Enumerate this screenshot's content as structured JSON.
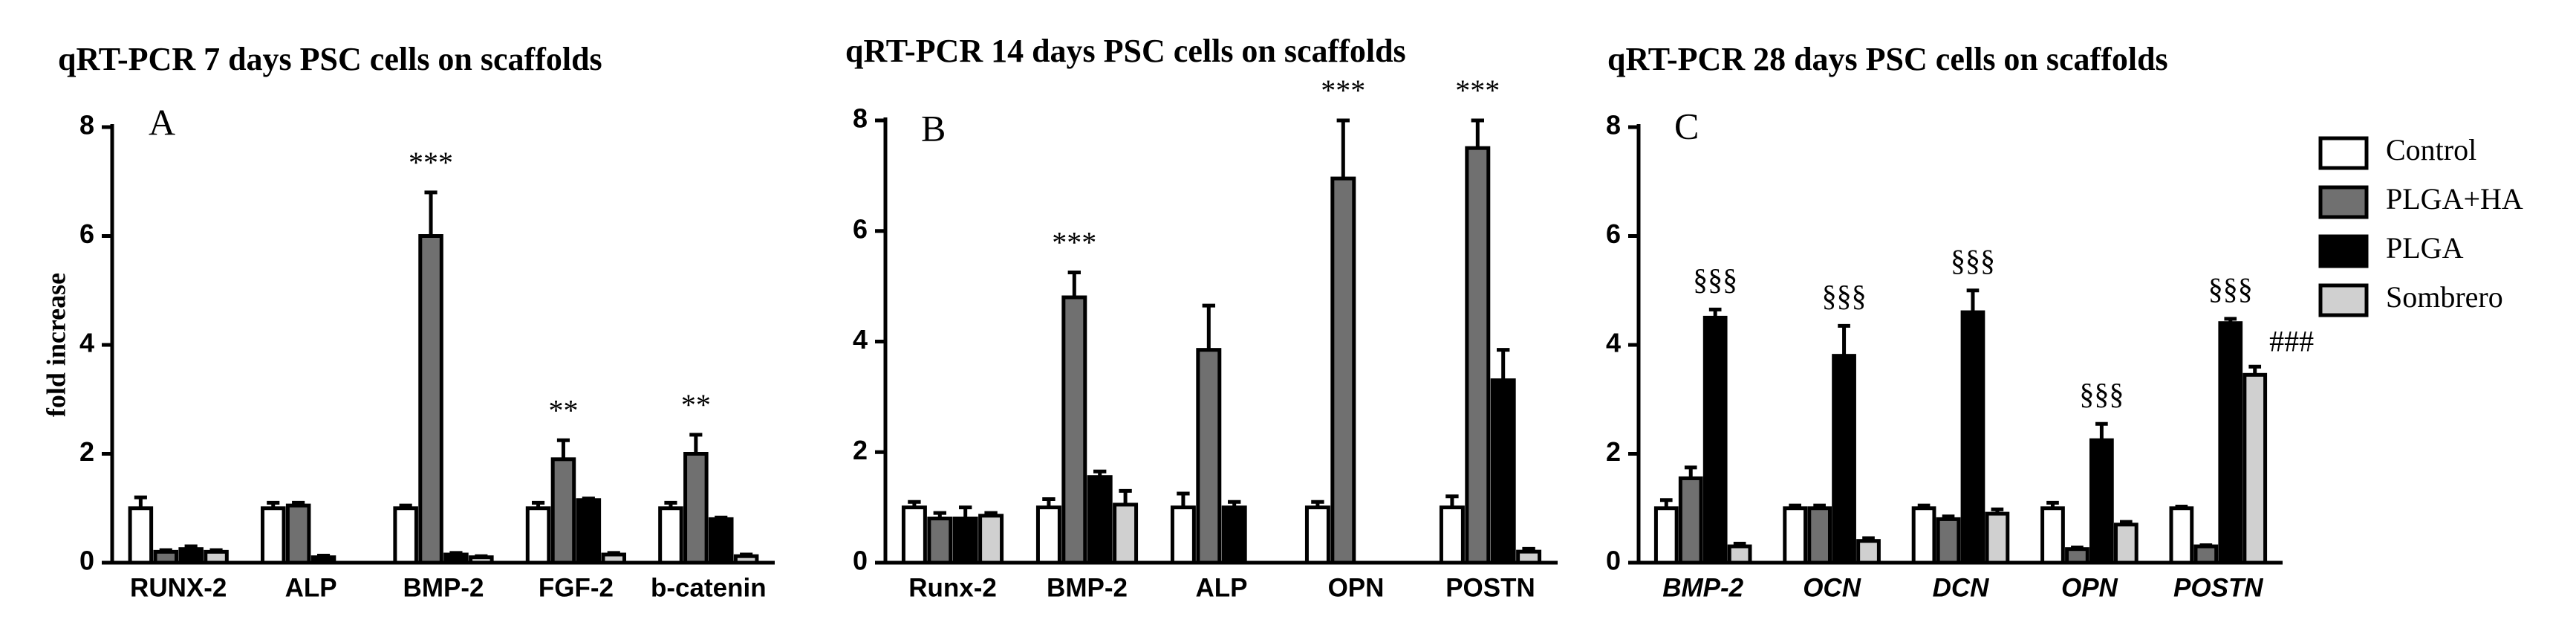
{
  "chart_data": [
    {
      "type": "bar",
      "title": "qRT-PCR 7 days PSC cells on scaffolds",
      "panel": "A",
      "ylabel": "fold increase",
      "categories": [
        "RUNX-2",
        "ALP",
        "BMP-2",
        "FGF-2",
        "b-catenin"
      ],
      "series": [
        {
          "color": "#ffffff",
          "values": [
            1.0,
            1.0,
            1.0,
            1.0,
            1.0
          ],
          "errors": [
            0.2,
            0.1,
            0.05,
            0.1,
            0.1
          ]
        },
        {
          "color": "#707070",
          "values": [
            0.2,
            1.05,
            6.0,
            1.9,
            2.0
          ],
          "errors": [
            0.03,
            0.05,
            0.8,
            0.35,
            0.35
          ]
        },
        {
          "color": "#000000",
          "values": [
            0.25,
            0.1,
            0.15,
            1.15,
            0.8
          ],
          "errors": [
            0.05,
            0.03,
            0.03,
            0.03,
            0.03
          ]
        },
        {
          "color": "#d0d0d0",
          "values": [
            0.2,
            0,
            0.1,
            0.15,
            0.12
          ],
          "errors": [
            0.03,
            0,
            0.02,
            0.03,
            0.03
          ]
        }
      ],
      "annotations": [
        {
          "text": "***",
          "category": "BMP-2",
          "series": 1
        },
        {
          "text": "**",
          "category": "FGF-2",
          "series": 1
        },
        {
          "text": "**",
          "category": "b-catenin",
          "series": 1
        }
      ],
      "ylim": [
        0,
        8
      ],
      "yticks": [
        0,
        2,
        4,
        6,
        8
      ]
    },
    {
      "type": "bar",
      "title": "qRT-PCR 14 days PSC cells on scaffolds",
      "panel": "B",
      "categories": [
        "Runx-2",
        "BMP-2",
        "ALP",
        "OPN",
        "POSTN"
      ],
      "series": [
        {
          "color": "#ffffff",
          "values": [
            1.0,
            1.0,
            1.0,
            1.0,
            1.0
          ],
          "errors": [
            0.1,
            0.15,
            0.25,
            0.1,
            0.2
          ]
        },
        {
          "color": "#707070",
          "values": [
            0.8,
            4.8,
            3.85,
            6.95,
            7.5
          ],
          "errors": [
            0.1,
            0.45,
            0.8,
            1.05,
            0.5
          ]
        },
        {
          "color": "#000000",
          "values": [
            0.8,
            1.55,
            1.0,
            0,
            3.3
          ],
          "errors": [
            0.2,
            0.1,
            0.1,
            0,
            0.55
          ]
        },
        {
          "color": "#d0d0d0",
          "values": [
            0.85,
            1.05,
            0,
            0,
            0.2
          ],
          "errors": [
            0.05,
            0.25,
            0,
            0,
            0.05
          ]
        }
      ],
      "annotations": [
        {
          "text": "***",
          "category": "BMP-2",
          "series": 1
        },
        {
          "text": "***",
          "category": "OPN",
          "series": 1
        },
        {
          "text": "***",
          "category": "POSTN",
          "series": 1
        }
      ],
      "ylim": [
        0,
        8
      ],
      "yticks": [
        0,
        2,
        4,
        6,
        8
      ]
    },
    {
      "type": "bar",
      "title": "qRT-PCR 28 days PSC cells on scaffolds",
      "panel": "C",
      "category_style": "italic",
      "legend": "right",
      "categories": [
        "BMP-2",
        "OCN",
        "DCN",
        "OPN",
        "POSTN"
      ],
      "series": [
        {
          "name": "Control",
          "color": "#ffffff",
          "values": [
            1.0,
            1.0,
            1.0,
            1.0,
            1.0
          ],
          "errors": [
            0.15,
            0.05,
            0.05,
            0.1,
            0.03
          ]
        },
        {
          "name": "PLGA+HA",
          "color": "#707070",
          "values": [
            1.55,
            1.0,
            0.8,
            0.25,
            0.3
          ],
          "errors": [
            0.2,
            0.05,
            0.05,
            0.03,
            0.02
          ]
        },
        {
          "name": "PLGA",
          "color": "#000000",
          "values": [
            4.5,
            3.8,
            4.6,
            2.25,
            4.4
          ],
          "errors": [
            0.15,
            0.55,
            0.4,
            0.3,
            0.08
          ]
        },
        {
          "name": "Sombrero",
          "color": "#d0d0d0",
          "values": [
            0.3,
            0.4,
            0.9,
            0.7,
            3.45
          ],
          "errors": [
            0.05,
            0.05,
            0.08,
            0.05,
            0.15
          ]
        }
      ],
      "annotations": [
        {
          "text": "§§§",
          "category": "BMP-2",
          "series": 2
        },
        {
          "text": "§§§",
          "category": "OCN",
          "series": 2
        },
        {
          "text": "§§§",
          "category": "DCN",
          "series": 2
        },
        {
          "text": "§§§",
          "category": "OPN",
          "series": 2
        },
        {
          "text": "§§§",
          "category": "POSTN",
          "series": 2
        },
        {
          "text": "###",
          "category": "POSTN",
          "series": 3,
          "position": "right"
        }
      ],
      "ylim": [
        0,
        8
      ],
      "yticks": [
        0,
        2,
        4,
        6,
        8
      ]
    }
  ]
}
